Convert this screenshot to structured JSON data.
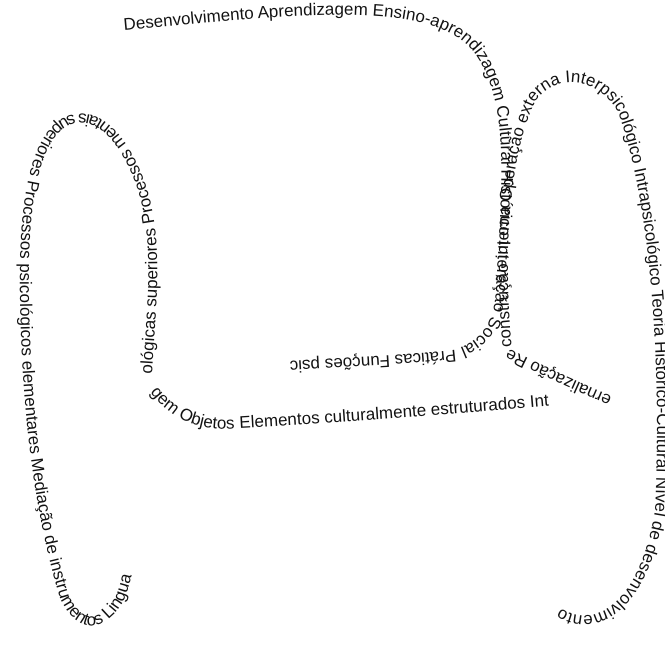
{
  "colors": {
    "background": "#ffffff",
    "text": "#111111"
  },
  "segments": [
    {
      "id": "top",
      "text": "Desenvolvimento Aprendizagem Ensino-aprendizagem Cultural Histórico Interação Social Práticas Funções psic"
    },
    {
      "id": "left-upper",
      "text": "ológicas superiores Processos mentais superiores Processos psicológicos elementares Mediação de instrumentos Lingua"
    },
    {
      "id": "middle",
      "text": "gem Objetos Elementos culturalmente estruturados Int"
    },
    {
      "id": "right-inner",
      "text": "ernalização Reconstrução interna Operação externa Interpsicológico Intrapsicológico Teoria Histórico-Cultural Nível de desenvolvimento"
    }
  ]
}
